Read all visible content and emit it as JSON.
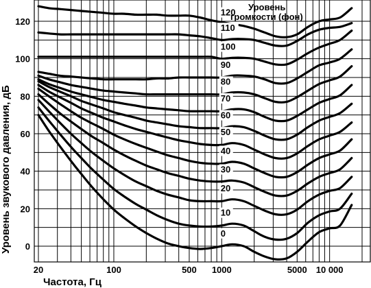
{
  "chart_data": {
    "type": "line",
    "xlabel": "Частота, Гц",
    "ylabel": "Уровень звукового давления, дБ",
    "legend_title": [
      "Уровень",
      "громкости (фон)"
    ],
    "x_scale": "log",
    "xlim": [
      20,
      20000
    ],
    "ylim": [
      -8,
      130
    ],
    "x_ticks": [
      {
        "value": 20,
        "label": "20"
      },
      {
        "value": 100,
        "label": "100"
      },
      {
        "value": 500,
        "label": "500"
      },
      {
        "value": 1000,
        "label": "1000"
      },
      {
        "value": 5000,
        "label": "5000"
      },
      {
        "value": 10000,
        "label": "10 000"
      }
    ],
    "y_ticks": [
      {
        "value": 0,
        "label": "0"
      },
      {
        "value": 20,
        "label": "20"
      },
      {
        "value": 40,
        "label": "40"
      },
      {
        "value": 60,
        "label": "60"
      },
      {
        "value": 80,
        "label": "80"
      },
      {
        "value": 100,
        "label": "100"
      },
      {
        "value": 120,
        "label": "120"
      }
    ],
    "grid": true,
    "x": [
      20,
      25,
      31.5,
      40,
      50,
      63,
      80,
      100,
      125,
      160,
      200,
      250,
      315,
      400,
      500,
      630,
      800,
      1000,
      1250,
      1600,
      2000,
      2500,
      3150,
      4000,
      5000,
      6300,
      8000,
      10000,
      12500,
      16000
    ],
    "series": [
      {
        "name": "0",
        "label_x": 1200,
        "values": [
          70,
          61.5,
          53.5,
          45.5,
          38.5,
          31.5,
          25,
          19.5,
          15,
          10.5,
          7,
          4,
          1.5,
          0,
          -1,
          -1.5,
          -1,
          0,
          1,
          0,
          -3,
          -5.5,
          -7,
          -6.5,
          -3,
          2.5,
          7.5,
          9.5,
          11,
          22
        ]
      },
      {
        "name": "10",
        "label_x": 1200,
        "values": [
          74,
          67,
          60,
          53,
          47,
          41,
          35.5,
          30.5,
          26.5,
          22.5,
          19.5,
          16.5,
          14,
          12,
          11,
          10.5,
          10.5,
          11,
          12,
          11,
          8,
          5,
          3.5,
          4,
          7,
          12.5,
          16.5,
          18.5,
          20,
          28
        ]
      },
      {
        "name": "20",
        "label_x": 1200,
        "values": [
          78,
          72,
          66,
          60,
          55,
          50,
          45.5,
          41.5,
          38,
          34.5,
          32,
          29.5,
          27.5,
          26,
          24.5,
          24,
          24,
          24,
          25,
          24,
          21.5,
          19,
          17,
          17,
          19.5,
          24,
          27.5,
          29.5,
          31,
          37
        ]
      },
      {
        "name": "30",
        "label_x": 1200,
        "values": [
          81,
          76,
          71,
          66.5,
          62.5,
          58.5,
          55,
          51.5,
          48.5,
          45.5,
          43,
          41,
          39,
          37.5,
          36,
          35,
          34.5,
          34.5,
          35,
          34,
          31.5,
          29,
          27,
          27,
          29.5,
          33.5,
          37,
          39,
          41,
          47
        ]
      },
      {
        "name": "40",
        "label_x": 1200,
        "values": [
          84,
          80,
          76,
          72,
          68.5,
          65.5,
          62.5,
          59.5,
          57,
          54.5,
          52.5,
          50.5,
          48.5,
          47,
          45.5,
          44.5,
          44,
          44,
          45,
          44,
          41.5,
          39,
          37,
          37,
          39.5,
          43.5,
          47,
          49,
          51,
          57
        ]
      },
      {
        "name": "50",
        "label_x": 1200,
        "values": [
          86,
          82.5,
          79.5,
          76.5,
          73.5,
          71,
          68.5,
          66.5,
          64.5,
          62.5,
          61,
          59.5,
          58,
          56.5,
          55.5,
          54.5,
          54,
          54,
          55,
          54,
          51.5,
          49,
          47,
          47,
          49.5,
          53.5,
          57,
          59,
          61,
          66
        ]
      },
      {
        "name": "60",
        "label_x": 1200,
        "values": [
          88,
          85,
          82.5,
          80,
          77.5,
          75.5,
          73.5,
          71.5,
          70,
          68.5,
          67,
          66,
          65,
          64,
          63.5,
          63,
          63,
          63,
          64,
          63.5,
          61.5,
          59,
          57,
          57,
          59.5,
          63.5,
          67,
          69,
          71,
          76
        ]
      },
      {
        "name": "70",
        "label_x": 1200,
        "values": [
          89,
          86.5,
          84.5,
          82.5,
          81,
          79.5,
          78,
          77,
          76,
          75,
          74,
          73.5,
          73,
          72.5,
          72,
          72,
          72,
          72,
          73,
          73,
          71.5,
          69,
          67,
          67,
          69.5,
          73,
          76.5,
          78.5,
          80.5,
          86
        ]
      },
      {
        "name": "80",
        "label_x": 1200,
        "values": [
          91,
          89,
          87.5,
          86,
          85,
          84,
          83,
          82.5,
          82,
          81.5,
          81,
          81,
          81,
          81,
          81,
          81,
          81,
          81,
          82,
          82,
          81,
          79,
          77,
          77,
          79.5,
          83,
          86.5,
          88.5,
          90.5,
          96
        ]
      },
      {
        "name": "90",
        "label_x": 1200,
        "values": [
          93,
          92,
          91,
          90.5,
          90,
          89.5,
          89,
          89,
          89,
          89,
          89,
          89.5,
          89.5,
          90,
          90,
          90,
          90,
          90,
          91,
          91,
          90.5,
          89,
          87,
          87,
          89.5,
          93,
          96.5,
          98,
          100,
          105
        ]
      },
      {
        "name": "100",
        "label_x": 1200,
        "values": [
          101,
          101,
          101,
          101,
          101,
          101,
          101,
          101,
          101,
          101,
          101,
          101,
          101,
          101,
          101,
          101,
          101,
          100,
          100.5,
          100.5,
          100,
          98.5,
          97,
          97,
          99.5,
          103,
          106,
          108,
          110,
          115
        ]
      },
      {
        "name": "110",
        "label_x": 1200,
        "values": [
          114,
          113.5,
          113,
          113,
          113,
          113,
          113,
          113,
          113,
          113,
          113,
          113,
          113,
          113,
          112.5,
          112,
          111,
          110,
          110.5,
          110.5,
          110,
          108.5,
          107,
          107,
          109.5,
          113,
          115.5,
          116.5,
          117,
          119
        ]
      },
      {
        "name": "120",
        "label_x": 1200,
        "values": [
          128,
          127,
          126.5,
          126,
          125.5,
          125,
          124.5,
          124,
          124,
          123.5,
          123.5,
          123.5,
          123,
          123,
          123,
          122,
          120.5,
          119.5,
          118.5,
          117.5,
          116,
          114,
          112,
          111.5,
          113,
          117,
          120,
          121,
          122,
          127
        ]
      }
    ]
  }
}
